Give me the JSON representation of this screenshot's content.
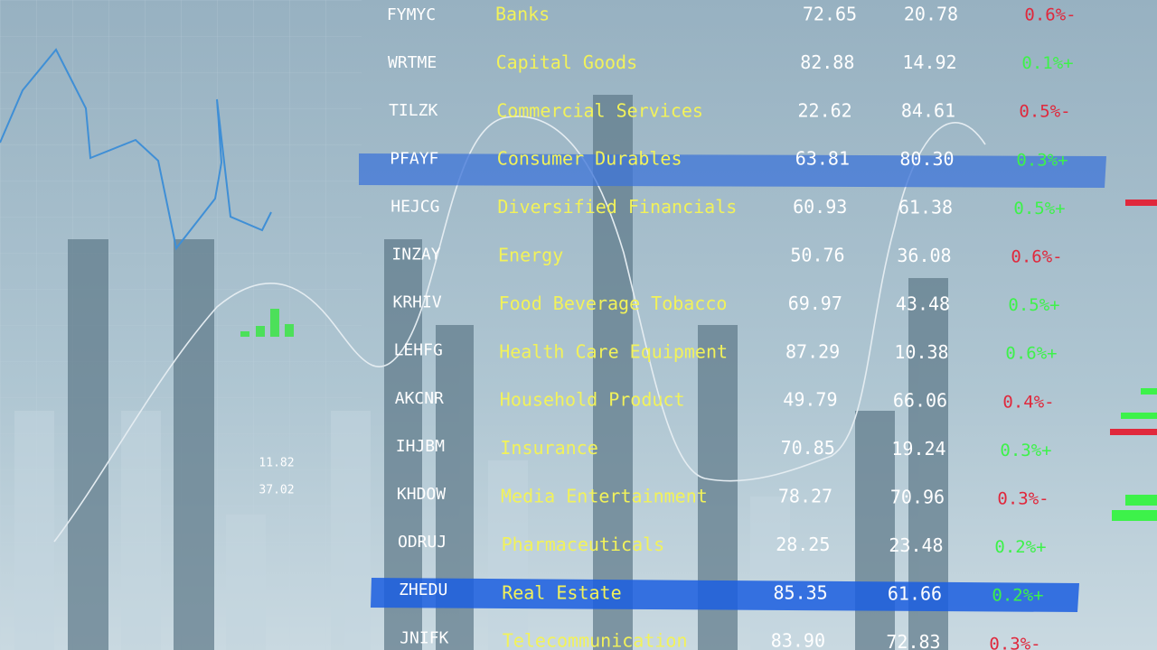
{
  "table": {
    "rows": [
      [
        "FYMYC",
        "Banks",
        "72.65",
        "20.78",
        "0.6%-"
      ],
      [
        "WRTME",
        "Capital Goods",
        "82.88",
        "14.92",
        "0.1%+"
      ],
      [
        "TILZK",
        "Commercial Services",
        "22.62",
        "84.61",
        "0.5%-"
      ],
      [
        "PFAYF",
        "Consumer Durables",
        "63.81",
        "80.30",
        "0.3%+"
      ],
      [
        "HEJCG",
        "Diversified Financials",
        "60.93",
        "61.38",
        "0.5%+"
      ],
      [
        "INZAY",
        "Energy",
        "50.76",
        "36.08",
        "0.6%-"
      ],
      [
        "KRHIV",
        "Food Beverage Tobacco",
        "69.97",
        "43.48",
        "0.5%+"
      ],
      [
        "LEHFG",
        "Health Care Equipment",
        "87.29",
        "10.38",
        "0.6%+"
      ],
      [
        "AKCNR",
        "Household Product",
        "49.79",
        "66.06",
        "0.4%-"
      ],
      [
        "IHJBM",
        "Insurance",
        "70.85",
        "19.24",
        "0.3%+"
      ],
      [
        "KHDOW",
        "Media Entertainment",
        "78.27",
        "70.96",
        "0.3%-"
      ],
      [
        "ODRUJ",
        "Pharmaceuticals",
        "28.25",
        "23.48",
        "0.2%+"
      ],
      [
        "ZHEDU",
        "Real Estate",
        "85.35",
        "61.66",
        "0.2%+"
      ],
      [
        "JNIFK",
        "Telecommunication",
        "83.90",
        "72.83",
        "0.3%-"
      ]
    ]
  },
  "background_labels": [
    "11.82",
    "37.02"
  ]
}
